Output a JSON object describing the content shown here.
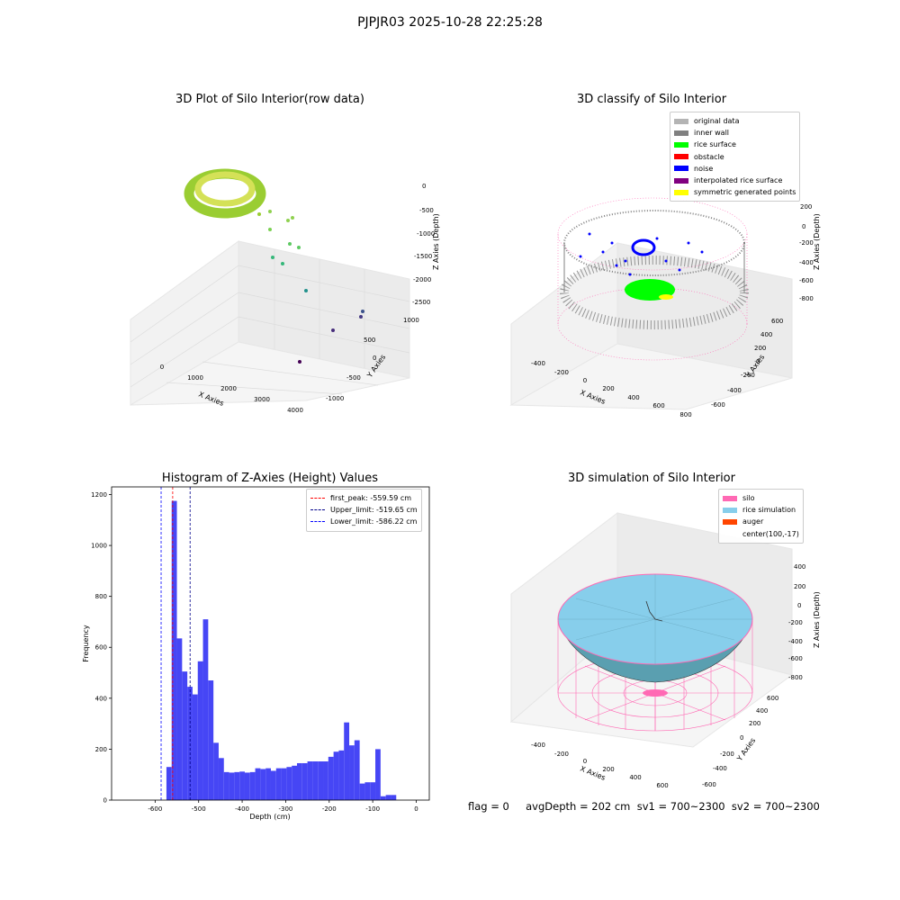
{
  "suptitle": "PJPJR03 2025-10-28 22:25:28",
  "colors": {
    "original": "#b4b4b4",
    "inner_wall": "#808080",
    "rice_surface": "#00ff00",
    "obstacle": "#ff0000",
    "noise": "#0000ff",
    "interpolated": "#800080",
    "symmetric": "#ffff00",
    "hist_bar": "#4646f5",
    "silo": "#ff69b4",
    "rice_sim": "#87ceeb",
    "auger": "#ff4500"
  },
  "plot1": {
    "title": "3D Plot of Silo Interior(row data)",
    "xlabel": "X Axies",
    "ylabel": "Y Axies",
    "zlabel": "Z Axies (Depth)",
    "xticks": [
      "0",
      "1000",
      "2000",
      "3000",
      "4000"
    ],
    "yticks": [
      "-1000",
      "-500",
      "0",
      "500",
      "1000"
    ],
    "zticks": [
      "0",
      "-500",
      "-1000",
      "-1500",
      "-2000",
      "-2500"
    ]
  },
  "plot2": {
    "title": "3D classify of Silo Interior",
    "xlabel": "X Axies",
    "ylabel": "Y Axies",
    "zlabel": "Z Axies (Depth)",
    "xticks": [
      "-400",
      "-200",
      "0",
      "200",
      "400",
      "600",
      "800"
    ],
    "yticks": [
      "-600",
      "-400",
      "-200",
      "0",
      "200",
      "400",
      "600"
    ],
    "zticks": [
      "200",
      "0",
      "-200",
      "-400",
      "-600",
      "-800"
    ],
    "legend": [
      {
        "label": "original data",
        "color": "#b4b4b4"
      },
      {
        "label": "inner wall",
        "color": "#808080"
      },
      {
        "label": "rice surface",
        "color": "#00ff00"
      },
      {
        "label": "obstacle",
        "color": "#ff0000"
      },
      {
        "label": "noise",
        "color": "#0000ff"
      },
      {
        "label": "interpolated rice surface",
        "color": "#800080"
      },
      {
        "label": "symmetric generated points",
        "color": "#ffff00"
      }
    ]
  },
  "plot4": {
    "title": "3D simulation of Silo Interior",
    "xlabel": "X Axies",
    "ylabel": "Y Axies",
    "zlabel": "Z Axies (Depth)",
    "xticks": [
      "-400",
      "-200",
      "0",
      "200",
      "400",
      "600"
    ],
    "yticks": [
      "-600",
      "-400",
      "-200",
      "0",
      "200",
      "400",
      "600"
    ],
    "zticks": [
      "400",
      "200",
      "0",
      "-200",
      "-400",
      "-600",
      "-800"
    ],
    "legend": [
      {
        "label": "silo",
        "color": "#ff69b4"
      },
      {
        "label": "rice simulation",
        "color": "#87ceeb"
      },
      {
        "label": "auger",
        "color": "#ff4500"
      },
      {
        "label": "center(100,-17)",
        "color": ""
      }
    ],
    "status": "flag = 0     avgDepth = 202 cm  sv1 = 700~2300  sv2 = 700~2300"
  },
  "chart_data": {
    "type": "bar",
    "title": "Histogram of Z-Axies (Height) Values",
    "xlabel": "Depth (cm)",
    "ylabel": "Frequency",
    "xlim": [
      -700,
      30
    ],
    "ylim": [
      0,
      1230
    ],
    "xticks": [
      -600,
      -500,
      -400,
      -300,
      -200,
      -100,
      0
    ],
    "yticks": [
      0,
      200,
      400,
      600,
      800,
      1000,
      1200
    ],
    "bin_width": 12,
    "bin_starts": [
      -574,
      -562,
      -550,
      -538,
      -526,
      -514,
      -502,
      -490,
      -478,
      -466,
      -454,
      -442,
      -430,
      -418,
      -406,
      -394,
      -382,
      -370,
      -358,
      -346,
      -334,
      -322,
      -310,
      -298,
      -286,
      -274,
      -262,
      -250,
      -238,
      -226,
      -214,
      -202,
      -190,
      -178,
      -166,
      -154,
      -142,
      -130,
      -118,
      -106,
      -94,
      -82,
      -70,
      -58,
      -46,
      -34,
      -22,
      -10
    ],
    "counts": [
      130,
      1175,
      635,
      505,
      445,
      415,
      545,
      710,
      470,
      225,
      165,
      110,
      108,
      110,
      112,
      108,
      110,
      125,
      122,
      125,
      115,
      125,
      125,
      130,
      135,
      145,
      145,
      152,
      152,
      152,
      152,
      170,
      190,
      195,
      305,
      215,
      235,
      65,
      70,
      70,
      200,
      15,
      20,
      20,
      0,
      0,
      0,
      0
    ],
    "vlines": [
      {
        "label": "first_peak: -559.59 cm",
        "x": -559.59,
        "color": "#ff0000"
      },
      {
        "label": "Upper_limit: -519.65 cm",
        "x": -519.65,
        "color": "#00008b"
      },
      {
        "label": "Lower_limit: -586.22 cm",
        "x": -586.22,
        "color": "#0000ff"
      }
    ],
    "legend_position": "top-right"
  }
}
